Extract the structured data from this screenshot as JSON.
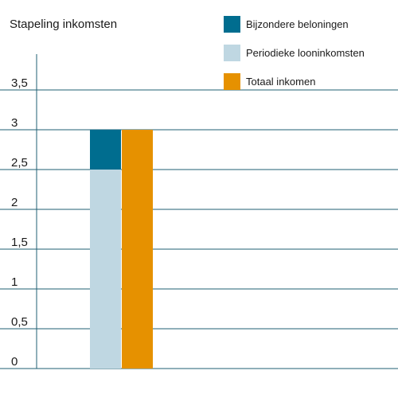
{
  "chart_data": {
    "type": "bar",
    "title": "Stapeling inkomsten",
    "xlabel": "",
    "ylabel": "",
    "ylim": [
      0,
      3.5
    ],
    "y_ticks": [
      "0",
      "0,5",
      "1",
      "1,5",
      "2",
      "2,5",
      "3",
      "3,5"
    ],
    "grid": true,
    "legend_position": "top-right",
    "bars": [
      {
        "stack": [
          {
            "series": "Periodieke looninkomsten",
            "value": 2.5
          },
          {
            "series": "Bijzondere beloningen",
            "value": 0.5
          }
        ]
      },
      {
        "stack": [
          {
            "series": "Totaal inkomen",
            "value": 3.0
          }
        ]
      }
    ],
    "series": [
      {
        "name": "Bijzondere beloningen",
        "color": "#006d8f"
      },
      {
        "name": "Periodieke looninkomsten",
        "color": "#bfd7e2"
      },
      {
        "name": "Totaal inkomen",
        "color": "#e69100"
      }
    ],
    "colors": {
      "grid": "#1f5f73",
      "axis": "#1f5f73"
    }
  }
}
